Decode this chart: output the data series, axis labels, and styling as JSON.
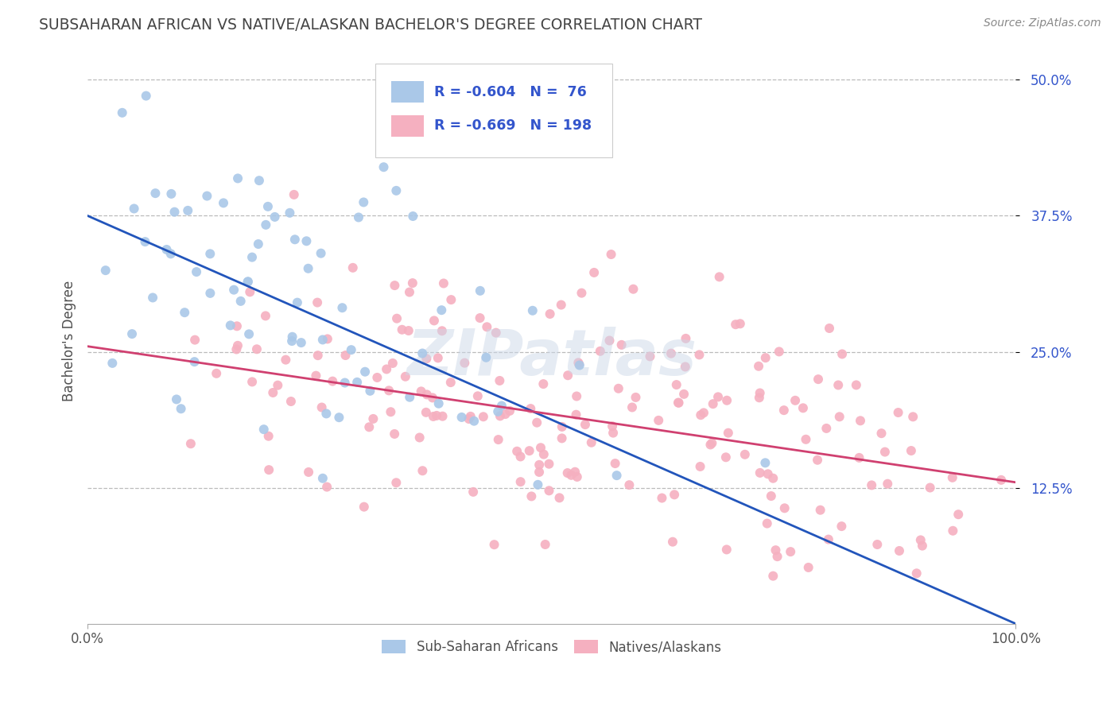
{
  "title": "SUBSAHARAN AFRICAN VS NATIVE/ALASKAN BACHELOR'S DEGREE CORRELATION CHART",
  "source_text": "Source: ZipAtlas.com",
  "ylabel": "Bachelor's Degree",
  "x_min": 0.0,
  "x_max": 1.0,
  "y_min": 0.0,
  "y_max": 0.52,
  "x_ticks": [
    0.0,
    1.0
  ],
  "x_tick_labels": [
    "0.0%",
    "100.0%"
  ],
  "y_ticks": [
    0.125,
    0.25,
    0.375,
    0.5
  ],
  "y_tick_labels": [
    "12.5%",
    "25.0%",
    "37.5%",
    "50.0%"
  ],
  "blue_color": "#aac8e8",
  "blue_line_color": "#2255bb",
  "pink_color": "#f5b0c0",
  "pink_line_color": "#d04070",
  "blue_R": -0.604,
  "blue_N": 76,
  "pink_R": -0.669,
  "pink_N": 198,
  "blue_label": "Sub-Saharan Africans",
  "pink_label": "Natives/Alaskans",
  "legend_text_color": "#3355cc",
  "title_color": "#444444",
  "background_color": "#ffffff",
  "grid_color": "#bbbbbb",
  "watermark": "ZIPatlas",
  "blue_seed": 42,
  "pink_seed": 99,
  "blue_intercept": 0.375,
  "blue_slope": -0.375,
  "pink_intercept": 0.255,
  "pink_slope": -0.125
}
